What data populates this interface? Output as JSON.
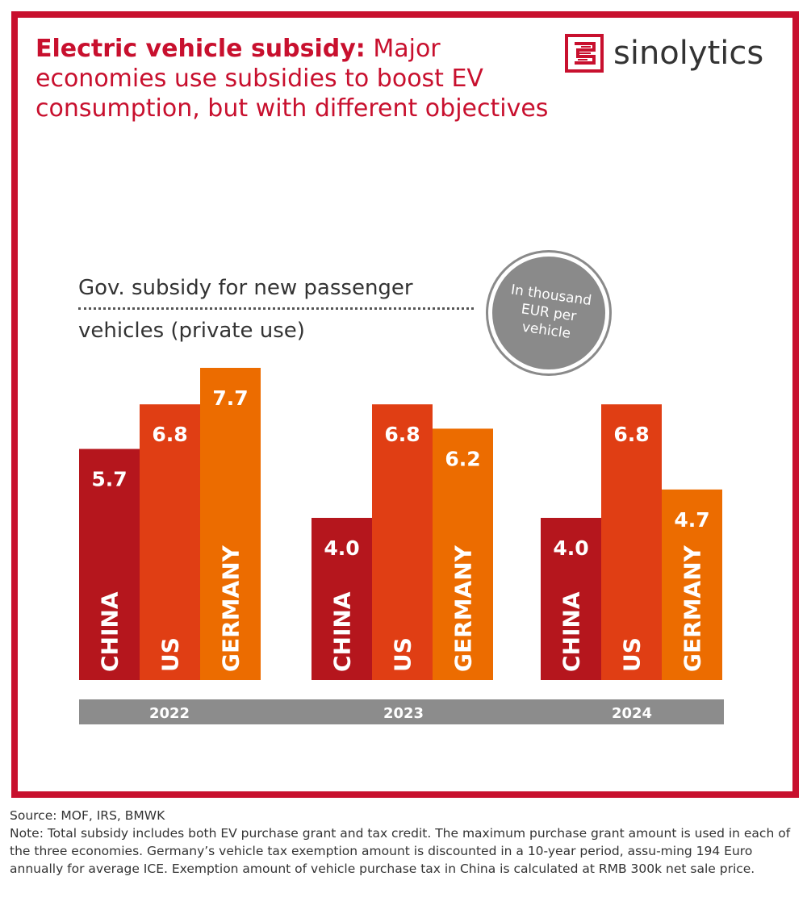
{
  "header": {
    "title_bold": "Electric vehicle subsidy:",
    "title_rest": " Major economies use subsidies to boost EV consumption, but with different objectives"
  },
  "logo": {
    "text": "sinolytics",
    "icon": "sinolytics-logo-icon"
  },
  "subtitle": {
    "line1": "Gov. subsidy for new passenger",
    "line2": "vehicles (private use)"
  },
  "unit_badge": "In thousand EUR per vehicle",
  "chart_data": {
    "type": "bar",
    "groups": [
      "2022",
      "2023",
      "2024"
    ],
    "series": [
      {
        "name": "CHINA",
        "values": [
          5.7,
          4.0,
          4.0
        ]
      },
      {
        "name": "US",
        "values": [
          6.8,
          6.8,
          6.8
        ]
      },
      {
        "name": "GERMANY",
        "values": [
          7.7,
          6.2,
          4.7
        ]
      }
    ],
    "value_labels": [
      [
        "5.7",
        "6.8",
        "7.7"
      ],
      [
        "4.0",
        "6.8",
        "6.2"
      ],
      [
        "4.0",
        "6.8",
        "4.7"
      ]
    ],
    "ylim": [
      0,
      7.7
    ],
    "grid": false,
    "legend": "none"
  },
  "colors": {
    "brand_red": "#c8102e",
    "china": "#b5161d",
    "us": "#e03e14",
    "germany": "#ec6c00",
    "year_bar": "#8c8c8c",
    "badge": "#8a8a8a"
  },
  "footer": {
    "source": "Source: MOF, IRS, BMWK",
    "note": "Note: Total subsidy includes both EV purchase grant and tax credit. The maximum purchase grant amount is used in each of the three economies. Germany’s vehicle tax exemption amount is discounted in a 10-year period, assu-ming 194 Euro annually for average ICE. Exemption amount of vehicle purchase tax in China is calculated at RMB 300k net sale price."
  }
}
